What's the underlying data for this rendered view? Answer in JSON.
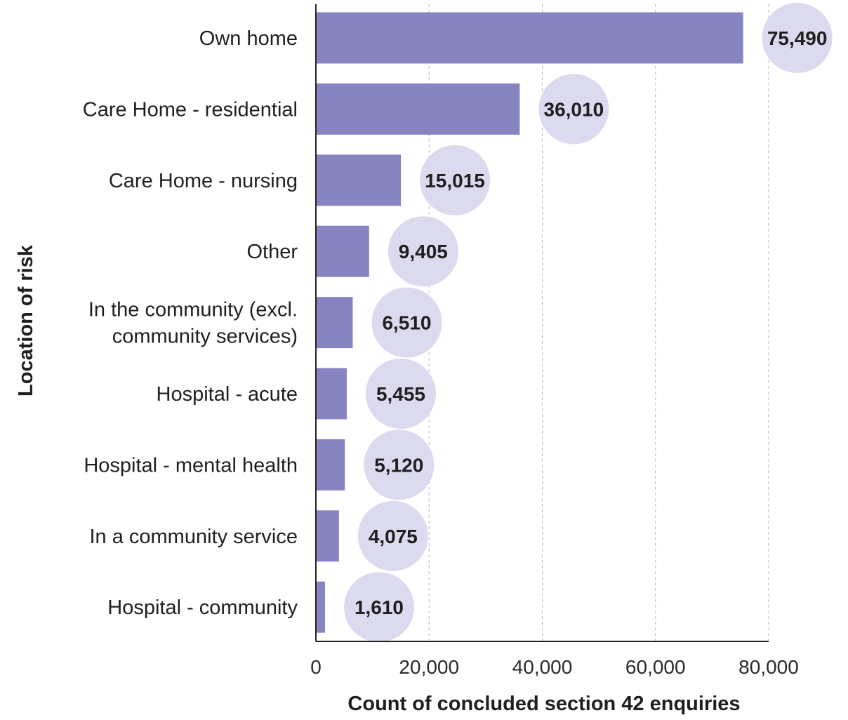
{
  "chart_data": {
    "type": "bar",
    "orientation": "horizontal",
    "categories": [
      [
        "Own home"
      ],
      [
        "Care Home - residential"
      ],
      [
        "Care Home - nursing"
      ],
      [
        "Other"
      ],
      [
        "In the community (excl.",
        "community services)"
      ],
      [
        "Hospital - acute"
      ],
      [
        "Hospital - mental health"
      ],
      [
        "In a community service"
      ],
      [
        "Hospital - community"
      ]
    ],
    "values": [
      75490,
      36010,
      15015,
      9405,
      6510,
      5455,
      5120,
      4075,
      1610
    ],
    "value_labels": [
      "75,490",
      "36,010",
      "15,015",
      "9,405",
      "6,510",
      "5,455",
      "5,120",
      "4,075",
      "1,610"
    ],
    "xlabel": "Count of concluded section 42 enquiries",
    "ylabel": "Location of risk",
    "xlim": [
      0,
      80000
    ],
    "xticks": [
      0,
      20000,
      40000,
      60000,
      80000
    ],
    "xtick_labels": [
      "0",
      "20,000",
      "40,000",
      "60,000",
      "80,000"
    ],
    "grid": "vertical dashed",
    "bar_color": "#8884c1",
    "label_bubble_color": "#dcdaef"
  }
}
